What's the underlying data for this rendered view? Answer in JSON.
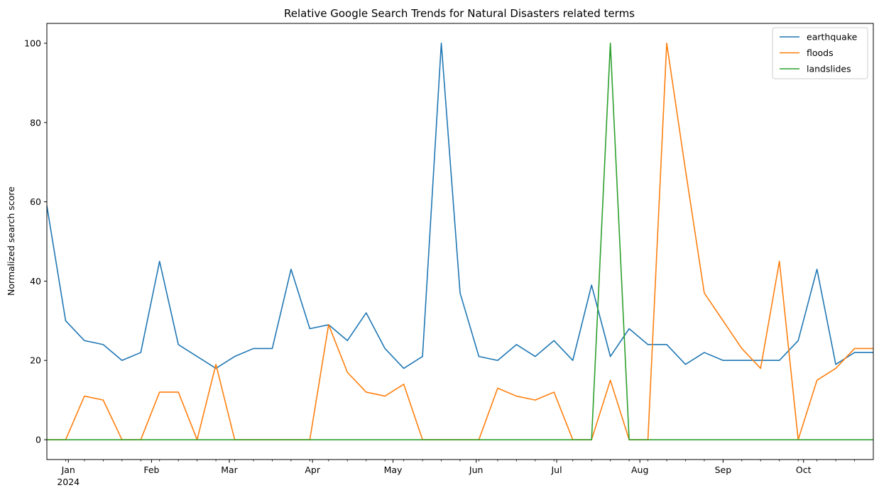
{
  "chart_data": {
    "type": "line",
    "title": "Relative Google Search Trends for Natural Disasters related terms",
    "xlabel": "",
    "ylabel": "Normalized search score",
    "ylim": [
      -5,
      105
    ],
    "yticks": [
      0,
      20,
      40,
      60,
      80,
      100
    ],
    "xlim": [
      "2023-12-24",
      "2024-10-27"
    ],
    "xticks": [
      {
        "date": "2024-01-01",
        "label": "Jan",
        "sublabel": "2024"
      },
      {
        "date": "2024-02-01",
        "label": "Feb"
      },
      {
        "date": "2024-03-01",
        "label": "Mar"
      },
      {
        "date": "2024-04-01",
        "label": "Apr"
      },
      {
        "date": "2024-05-01",
        "label": "May"
      },
      {
        "date": "2024-06-01",
        "label": "Jun"
      },
      {
        "date": "2024-07-01",
        "label": "Jul"
      },
      {
        "date": "2024-08-01",
        "label": "Aug"
      },
      {
        "date": "2024-09-01",
        "label": "Sep"
      },
      {
        "date": "2024-10-01",
        "label": "Oct"
      }
    ],
    "x": [
      "2023-12-24",
      "2023-12-31",
      "2024-01-07",
      "2024-01-14",
      "2024-01-21",
      "2024-01-28",
      "2024-02-04",
      "2024-02-11",
      "2024-02-18",
      "2024-02-25",
      "2024-03-03",
      "2024-03-10",
      "2024-03-17",
      "2024-03-24",
      "2024-03-31",
      "2024-04-07",
      "2024-04-14",
      "2024-04-21",
      "2024-04-28",
      "2024-05-05",
      "2024-05-12",
      "2024-05-19",
      "2024-05-26",
      "2024-06-02",
      "2024-06-09",
      "2024-06-16",
      "2024-06-23",
      "2024-06-30",
      "2024-07-07",
      "2024-07-14",
      "2024-07-21",
      "2024-07-28",
      "2024-08-04",
      "2024-08-11",
      "2024-08-18",
      "2024-08-25",
      "2024-09-01",
      "2024-09-08",
      "2024-09-15",
      "2024-09-22",
      "2024-09-29",
      "2024-10-06",
      "2024-10-13",
      "2024-10-20",
      "2024-10-27"
    ],
    "series": [
      {
        "name": "earthquake",
        "color": "#1f77b4",
        "values": [
          59,
          30,
          25,
          24,
          20,
          22,
          45,
          24,
          21,
          18,
          21,
          23,
          23,
          43,
          28,
          29,
          25,
          32,
          23,
          18,
          21,
          100,
          37,
          21,
          20,
          24,
          21,
          25,
          20,
          39,
          21,
          28,
          24,
          24,
          19,
          22,
          20,
          20,
          20,
          20,
          25,
          43,
          19,
          22,
          22
        ]
      },
      {
        "name": "floods",
        "color": "#ff7f0e",
        "values": [
          0,
          0,
          11,
          10,
          0,
          0,
          12,
          12,
          0,
          19,
          0,
          0,
          0,
          0,
          0,
          29,
          17,
          12,
          11,
          14,
          0,
          0,
          0,
          0,
          13,
          11,
          10,
          12,
          0,
          0,
          15,
          0,
          0,
          100,
          68,
          37,
          30,
          23,
          18,
          45,
          0,
          15,
          18,
          23,
          23
        ]
      },
      {
        "name": "landslides",
        "color": "#2ca02c",
        "values": [
          0,
          0,
          0,
          0,
          0,
          0,
          0,
          0,
          0,
          0,
          0,
          0,
          0,
          0,
          0,
          0,
          0,
          0,
          0,
          0,
          0,
          0,
          0,
          0,
          0,
          0,
          0,
          0,
          0,
          0,
          100,
          0,
          0,
          0,
          0,
          0,
          0,
          0,
          0,
          0,
          0,
          0,
          0,
          0,
          0
        ]
      }
    ],
    "legend": {
      "position": "top-right"
    },
    "grid": false
  }
}
